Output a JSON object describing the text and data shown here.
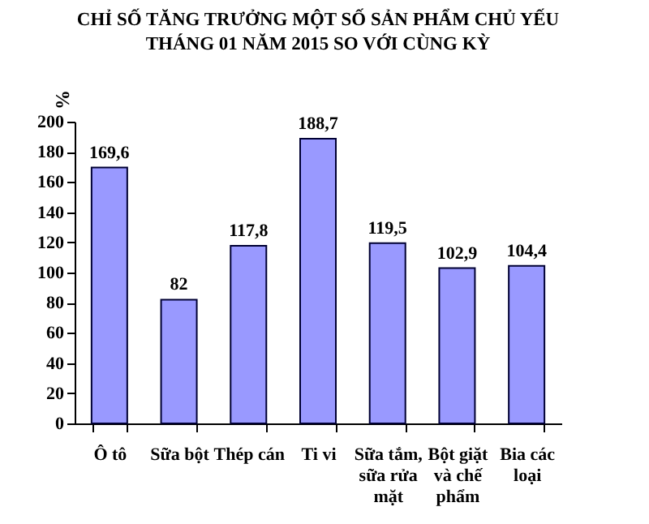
{
  "chart_data": {
    "type": "bar",
    "title": [
      "CHỈ SỐ TĂNG TRƯỞNG MỘT SỐ SẢN PHẨM CHỦ YẾU",
      "THÁNG 01 NĂM 2015 SO VỚI CÙNG KỲ"
    ],
    "ylabel": "%",
    "categories": [
      "Ô tô",
      "Sữa bột",
      "Thép cán",
      "Ti vi",
      "Sữa tắm, sữa rửa mặt",
      "Bột giặt và chế phẩm",
      "Bia các loại"
    ],
    "values": [
      169.6,
      82,
      117.8,
      188.7,
      119.5,
      102.9,
      104.4
    ],
    "value_labels": [
      "169,6",
      "82",
      "117,8",
      "188,7",
      "119,5",
      "102,9",
      "104,4"
    ],
    "color": "#9999ff",
    "ylim": [
      0,
      200
    ],
    "yticks": [
      0,
      20,
      40,
      60,
      80,
      100,
      120,
      140,
      160,
      180,
      200
    ],
    "grid": false
  }
}
